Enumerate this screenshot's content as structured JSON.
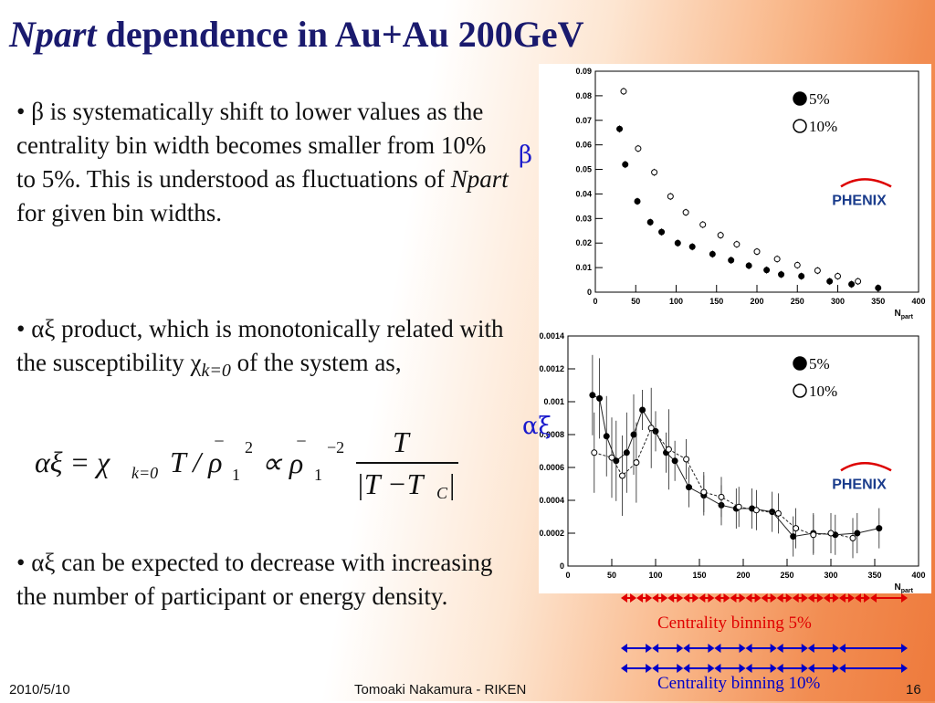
{
  "title": {
    "italic": "Npart",
    "rest": " dependence in Au+Au 200GeV"
  },
  "bullets": {
    "b1_a": "• β is systematically shift to lower values as the centrality bin width becomes smaller from 10% to 5%. This is understood as fluctuations of ",
    "b1_it": "Npart",
    "b1_b": " for given bin widths.",
    "b2_a": "• αξ product, which is monotonically related with the susceptibility χ",
    "b2_sub": "k=0",
    "b2_b": " of the system as,",
    "b3": "• αξ can be expected to decrease with increasing the number of participant or energy density."
  },
  "equation": {
    "lhs": "αξ = χ",
    "sub": "k=0",
    "mid": "T / ρ",
    "sub1": "1",
    "sup2": "2",
    "prop": "∝ ρ",
    "sub1b": "1",
    "supm2": "−2",
    "num": "T",
    "den": "|T −T",
    "denC": "C",
    "bar": "|"
  },
  "footer": {
    "date": "2010/5/10",
    "author": "Tomoaki Nakamura - RIKEN",
    "page": "16"
  },
  "colors": {
    "accent": "#1a1a6e",
    "red": "#e00000",
    "blue": "#0000c8"
  },
  "chart_data": [
    {
      "type": "scatter",
      "ylabel": "β",
      "xlabel": "N_part",
      "xlim": [
        0,
        400
      ],
      "ylim": [
        0,
        0.09
      ],
      "xticks": [
        "0",
        "50",
        "100",
        "150",
        "200",
        "250",
        "300",
        "350",
        "400"
      ],
      "yticks": [
        "0",
        "0.01",
        "0.02",
        "0.03",
        "0.04",
        "0.05",
        "0.06",
        "0.07",
        "0.08",
        "0.09"
      ],
      "legend_placement": "top-right",
      "logo": "PHENIX",
      "series": [
        {
          "name": "5%",
          "marker": "filled",
          "x": [
            30,
            37,
            52,
            68,
            82,
            102,
            120,
            145,
            168,
            190,
            212,
            230,
            255,
            290,
            317,
            350
          ],
          "y": [
            0.0665,
            0.052,
            0.037,
            0.0285,
            0.0245,
            0.02,
            0.0185,
            0.0155,
            0.013,
            0.0108,
            0.009,
            0.0072,
            0.0065,
            0.0044,
            0.0032,
            0.0017
          ]
        },
        {
          "name": "10%",
          "marker": "open",
          "x": [
            35,
            53,
            73,
            93,
            112,
            133,
            155,
            175,
            200,
            225,
            250,
            275,
            300,
            325
          ],
          "y": [
            0.0818,
            0.0585,
            0.0488,
            0.039,
            0.0325,
            0.0275,
            0.0232,
            0.0195,
            0.0165,
            0.0135,
            0.011,
            0.0088,
            0.0065,
            0.0044
          ]
        }
      ]
    },
    {
      "type": "scatter",
      "ylabel": "αξ",
      "xlabel": "N_part",
      "xlim": [
        0,
        400
      ],
      "ylim": [
        0,
        0.0014
      ],
      "xticks": [
        "0",
        "50",
        "100",
        "150",
        "200",
        "250",
        "300",
        "350",
        "400"
      ],
      "yticks": [
        "0",
        "0.0002",
        "0.0004",
        "0.0006",
        "0.0008",
        "0.001",
        "0.0012",
        "0.0014"
      ],
      "legend_placement": "top-right",
      "logo": "PHENIX",
      "series": [
        {
          "name": "5%",
          "marker": "filled",
          "x": [
            28,
            36,
            44,
            55,
            67,
            75,
            85,
            100,
            112,
            122,
            138,
            155,
            175,
            192,
            210,
            233,
            257,
            280,
            305,
            330,
            355
          ],
          "y": [
            0.00104,
            0.00102,
            0.00079,
            0.00064,
            0.00069,
            0.0008,
            0.00095,
            0.00082,
            0.00069,
            0.00064,
            0.00048,
            0.00043,
            0.00037,
            0.00035,
            0.00035,
            0.00033,
            0.00018,
            0.0002,
            0.00019,
            0.0002,
            0.00023
          ]
        },
        {
          "name": "10%",
          "marker": "open",
          "x": [
            30,
            50,
            62,
            78,
            95,
            115,
            135,
            155,
            175,
            195,
            215,
            240,
            260,
            280,
            300,
            325
          ],
          "y": [
            0.00069,
            0.00066,
            0.00055,
            0.00063,
            0.00084,
            0.00071,
            0.00065,
            0.00045,
            0.00042,
            0.00036,
            0.00034,
            0.00032,
            0.00023,
            0.00019,
            0.0002,
            0.00017
          ]
        }
      ]
    },
    {
      "type": "intervals",
      "label_5": "Centrality binning 5%",
      "label_10": "Centrality binning 10%",
      "bins_5": [
        [
          0,
          5
        ],
        [
          5,
          10
        ],
        [
          10,
          15
        ],
        [
          15,
          20
        ],
        [
          20,
          25
        ],
        [
          25,
          30
        ],
        [
          30,
          35
        ],
        [
          35,
          40
        ],
        [
          40,
          45
        ],
        [
          45,
          50
        ],
        [
          50,
          55
        ],
        [
          55,
          60
        ],
        [
          60,
          65
        ],
        [
          65,
          70
        ],
        [
          70,
          75
        ],
        [
          75,
          80
        ],
        [
          80,
          92
        ]
      ],
      "bins_10": [
        [
          0,
          10
        ],
        [
          10,
          20
        ],
        [
          20,
          30
        ],
        [
          30,
          40
        ],
        [
          40,
          50
        ],
        [
          50,
          60
        ],
        [
          60,
          70
        ],
        [
          70,
          92
        ]
      ]
    }
  ]
}
